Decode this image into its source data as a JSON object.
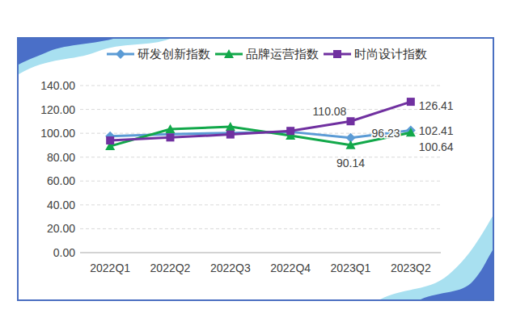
{
  "chart_data": {
    "type": "line",
    "categories": [
      "2022Q1",
      "2022Q2",
      "2022Q3",
      "2022Q4",
      "2023Q1",
      "2023Q2"
    ],
    "series": [
      {
        "name": "研发创新指数",
        "color": "#5b9bd5",
        "marker": "diamond",
        "values": [
          97.5,
          99.2,
          100.3,
          101.2,
          96.23,
          102.41
        ],
        "value_labels": [
          null,
          null,
          null,
          null,
          "96.23",
          "102.41"
        ]
      },
      {
        "name": "品牌运营指数",
        "color": "#12a84a",
        "marker": "triangle",
        "values": [
          89.2,
          103.5,
          105.5,
          98.0,
          90.14,
          100.64
        ],
        "value_labels": [
          null,
          null,
          null,
          null,
          "90.14",
          "100.64"
        ]
      },
      {
        "name": "时尚设计指数",
        "color": "#7030a0",
        "marker": "square",
        "values": [
          94.0,
          96.5,
          99.0,
          102.0,
          110.08,
          126.41
        ],
        "value_labels": [
          null,
          null,
          null,
          null,
          "110.08",
          "126.41"
        ]
      }
    ],
    "ylim": [
      0,
      140
    ],
    "yticks": [
      {
        "value": 0,
        "label": "0.00"
      },
      {
        "value": 20,
        "label": "20.00"
      },
      {
        "value": 40,
        "label": "40.00"
      },
      {
        "value": 60,
        "label": "60.00"
      },
      {
        "value": 80,
        "label": "80.00"
      },
      {
        "value": 100,
        "label": "100.00"
      },
      {
        "value": 120,
        "label": "120.00"
      },
      {
        "value": 140,
        "label": "140.00"
      }
    ],
    "grid": true,
    "legend": "top",
    "data_labels": true
  }
}
